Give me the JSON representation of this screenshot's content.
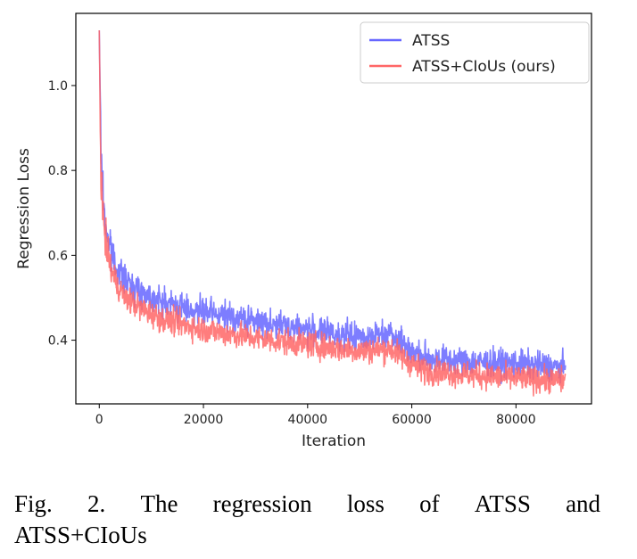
{
  "chart_data": {
    "type": "line",
    "title": "",
    "xlabel": "Iteration",
    "ylabel": "Regression Loss",
    "xlim": [
      -4500,
      94500
    ],
    "ylim": [
      0.25,
      1.17
    ],
    "xticks": [
      0,
      20000,
      40000,
      60000,
      80000
    ],
    "xtick_labels": [
      "0",
      "20000",
      "40000",
      "60000",
      "80000"
    ],
    "yticks": [
      0.4,
      0.6,
      0.8,
      1.0
    ],
    "ytick_labels": [
      "0.4",
      "0.6",
      "0.8",
      "1.0"
    ],
    "grid": false,
    "legend_position": "top-right",
    "series": [
      {
        "name": "ATSS",
        "color": "#6666ff",
        "noise": 0.016,
        "x": [
          0,
          300,
          700,
          1200,
          2000,
          3000,
          5000,
          8000,
          12000,
          20000,
          30000,
          40000,
          50000,
          56000,
          60000,
          62000,
          70000,
          80000,
          89500
        ],
        "y": [
          1.13,
          0.86,
          0.75,
          0.67,
          0.62,
          0.58,
          0.54,
          0.515,
          0.49,
          0.465,
          0.445,
          0.425,
          0.405,
          0.42,
          0.375,
          0.36,
          0.35,
          0.345,
          0.335
        ]
      },
      {
        "name": "ATSS+CIoUs (ours)",
        "color": "#ff6666",
        "noise": 0.015,
        "x": [
          0,
          300,
          700,
          1200,
          2000,
          3000,
          5000,
          8000,
          12000,
          20000,
          30000,
          40000,
          50000,
          56000,
          60000,
          62000,
          70000,
          80000,
          89500
        ],
        "y": [
          1.13,
          0.8,
          0.7,
          0.63,
          0.58,
          0.54,
          0.5,
          0.475,
          0.45,
          0.425,
          0.405,
          0.39,
          0.375,
          0.38,
          0.345,
          0.33,
          0.32,
          0.31,
          0.305
        ]
      }
    ]
  },
  "caption": {
    "line1": [
      "Fig.",
      "2.",
      "The",
      "regression",
      "loss",
      "of",
      "ATSS",
      "and"
    ],
    "line2": "ATSS+CIoUs"
  }
}
